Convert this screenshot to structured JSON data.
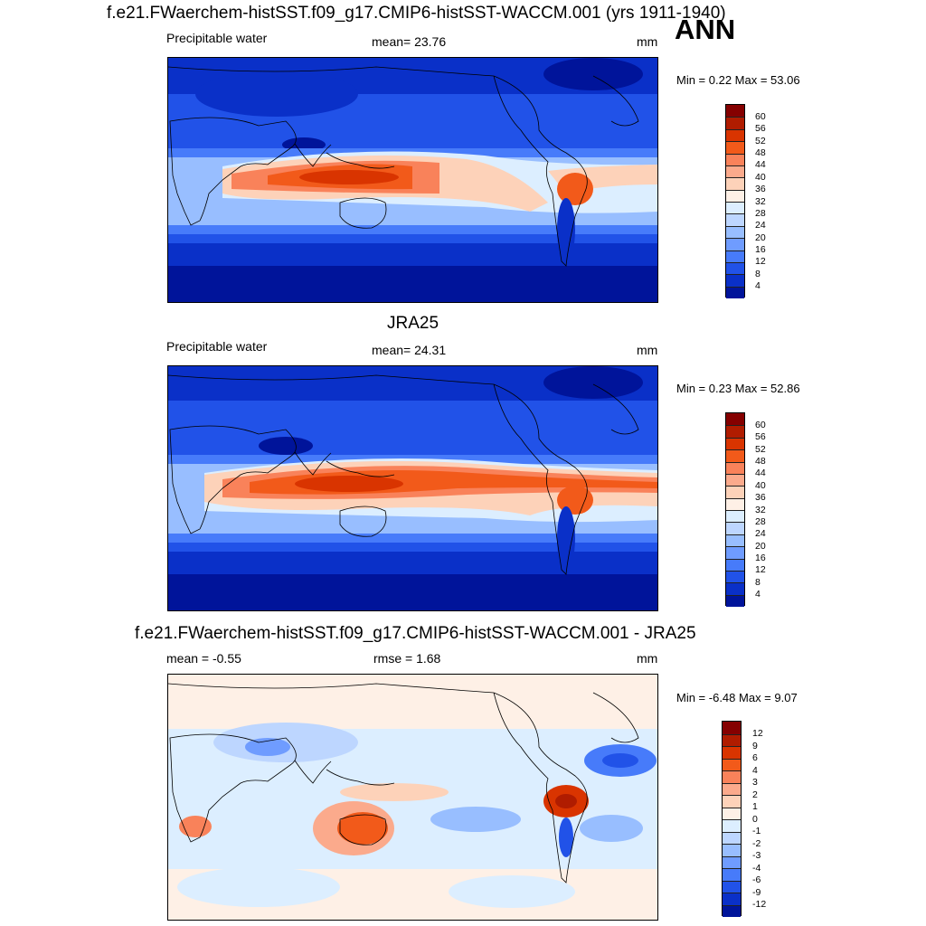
{
  "figure": {
    "title": "f.e21.FWaerchem-histSST.f09_g17.CMIP6-histSST-WACCM.001 (yrs 1911-1940)",
    "season": "ANN"
  },
  "panels": [
    {
      "variable": "Precipitable water",
      "stat": "mean=  23.76",
      "units": "mm",
      "minmax": "Min =   0.22 Max =  53.06",
      "colorbar": {
        "labels": [
          "60",
          "56",
          "52",
          "48",
          "44",
          "40",
          "36",
          "32",
          "28",
          "24",
          "20",
          "16",
          "12",
          "8",
          "4"
        ],
        "colors": [
          "#850000",
          "#b01c00",
          "#d93400",
          "#f25a1a",
          "#f9825a",
          "#fbaa8c",
          "#fdd2b9",
          "#fef0e6",
          "#dceeff",
          "#bdd6ff",
          "#98beff",
          "#6f9cff",
          "#477bfa",
          "#2152e8",
          "#0a30c8",
          "#00149a"
        ]
      }
    },
    {
      "heading": "JRA25",
      "variable": "Precipitable water",
      "stat": "mean=  24.31",
      "units": "mm",
      "minmax": "Min =   0.23 Max =  52.86",
      "colorbar": {
        "labels": [
          "60",
          "56",
          "52",
          "48",
          "44",
          "40",
          "36",
          "32",
          "28",
          "24",
          "20",
          "16",
          "12",
          "8",
          "4"
        ],
        "colors": [
          "#850000",
          "#b01c00",
          "#d93400",
          "#f25a1a",
          "#f9825a",
          "#fbaa8c",
          "#fdd2b9",
          "#fef0e6",
          "#dceeff",
          "#bdd6ff",
          "#98beff",
          "#6f9cff",
          "#477bfa",
          "#2152e8",
          "#0a30c8",
          "#00149a"
        ]
      }
    },
    {
      "heading": "f.e21.FWaerchem-histSST.f09_g17.CMIP6-histSST-WACCM.001 - JRA25",
      "stat_left": "mean =  -0.55",
      "stat": "rmse =    1.68",
      "units": "mm",
      "minmax": "Min =  -6.48 Max =   9.07",
      "colorbar": {
        "labels": [
          "12",
          "9",
          "6",
          "4",
          "3",
          "2",
          "1",
          "0",
          "-1",
          "-2",
          "-3",
          "-4",
          "-6",
          "-9",
          "-12"
        ],
        "colors": [
          "#850000",
          "#b01c00",
          "#d93400",
          "#f25a1a",
          "#f9825a",
          "#fbaa8c",
          "#fdd2b9",
          "#fef0e6",
          "#dceeff",
          "#bdd6ff",
          "#98beff",
          "#6f9cff",
          "#477bfa",
          "#2152e8",
          "#0a30c8",
          "#00149a"
        ]
      }
    }
  ]
}
